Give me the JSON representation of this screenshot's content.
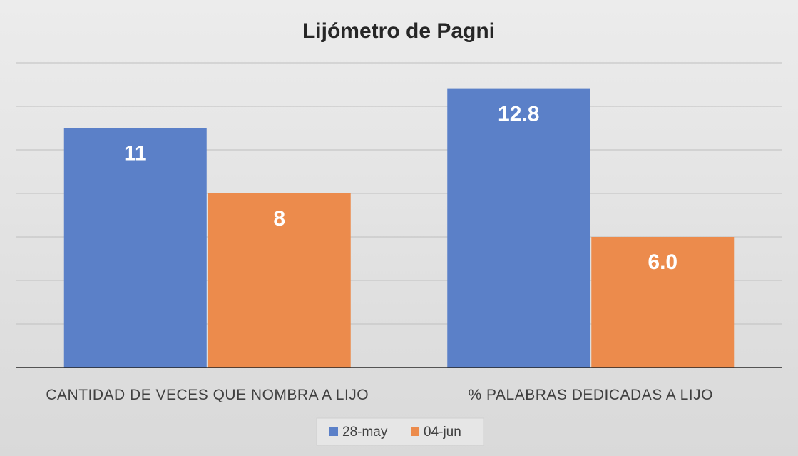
{
  "chart_data": {
    "type": "bar",
    "title": "Lijómetro de Pagni",
    "categories": [
      "CANTIDAD DE VECES QUE NOMBRA A LIJO",
      "% PALABRAS DEDICADAS A LIJO"
    ],
    "series": [
      {
        "name": "28-may",
        "values": [
          11,
          12.8
        ],
        "labels": [
          "11",
          "12.8"
        ],
        "color": "#5b80c8"
      },
      {
        "name": "04-jun",
        "values": [
          8,
          6.0
        ],
        "labels": [
          "8",
          "6.0"
        ],
        "color": "#ec8b4c"
      }
    ],
    "ylim": [
      0,
      14
    ],
    "grid": true,
    "legend": "bottom",
    "colors": {
      "gridline": "#bfbfbf",
      "axis": "#262626",
      "legend_bg": "#e6e6e6"
    }
  }
}
